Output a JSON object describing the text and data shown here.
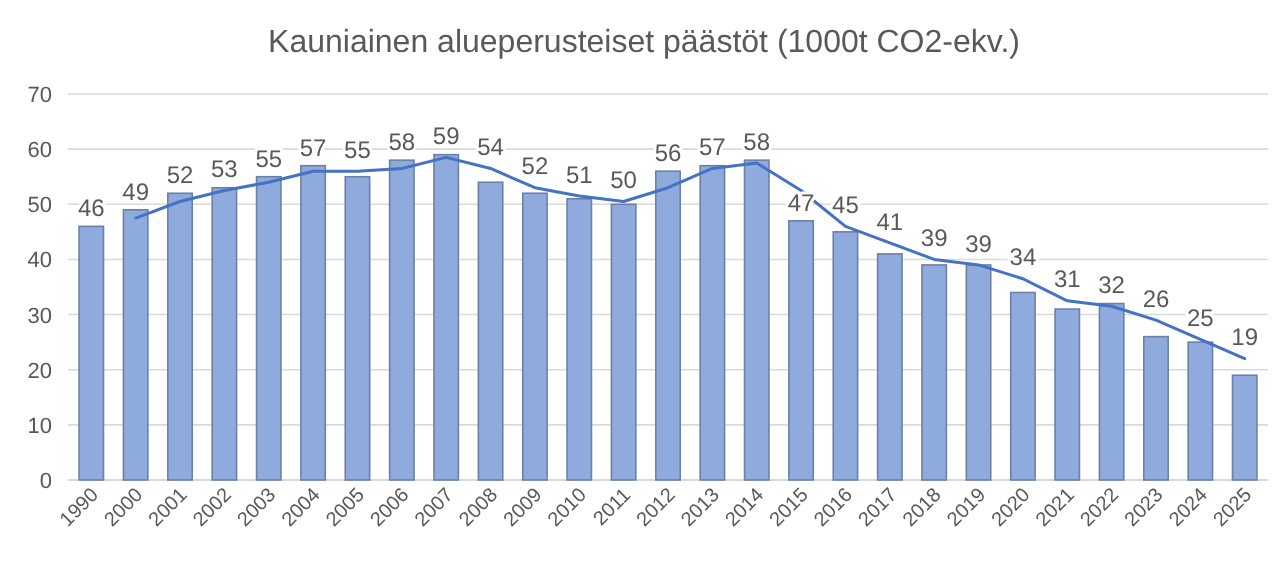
{
  "chart_data": {
    "type": "bar",
    "title": "Kauniainen alueperusteiset päästöt (1000t CO2-ekv.)",
    "categories": [
      "1990",
      "2000",
      "2001",
      "2002",
      "2003",
      "2004",
      "2005",
      "2006",
      "2007",
      "2008",
      "2009",
      "2010",
      "2011",
      "2012",
      "2013",
      "2014",
      "2015",
      "2016",
      "2017",
      "2018",
      "2019",
      "2020",
      "2021",
      "2022",
      "2023",
      "2024",
      "2025"
    ],
    "series": [
      {
        "color": "#8faadc",
        "values": [
          46,
          49,
          52,
          53,
          55,
          57,
          55,
          58,
          59,
          54,
          52,
          51,
          50,
          56,
          57,
          58,
          47,
          45,
          41,
          39,
          39,
          34,
          31,
          32,
          26,
          25,
          19
        ],
        "value_labels": [
          "46",
          "49",
          "52",
          "53",
          "55",
          "57",
          "55",
          "58",
          "59",
          "54",
          "52",
          "51",
          "50",
          "56",
          "57",
          "58",
          "47",
          "45",
          "41",
          "39",
          "39",
          "34",
          "31",
          "32",
          "26",
          "25",
          "19"
        ]
      },
      {
        "type": "line",
        "color": "#4472c4",
        "values": [
          null,
          47.5,
          50.5,
          52.5,
          54,
          56,
          56,
          56.5,
          58.5,
          56.5,
          53,
          51.5,
          50.5,
          53,
          56.5,
          57.5,
          52.5,
          46,
          43,
          40,
          39,
          36.5,
          32.5,
          31.5,
          29,
          25.5,
          22
        ]
      }
    ],
    "ylim": [
      0,
      70
    ],
    "yticks": [
      0,
      10,
      20,
      30,
      40,
      50,
      60,
      70
    ],
    "grid": "y"
  }
}
